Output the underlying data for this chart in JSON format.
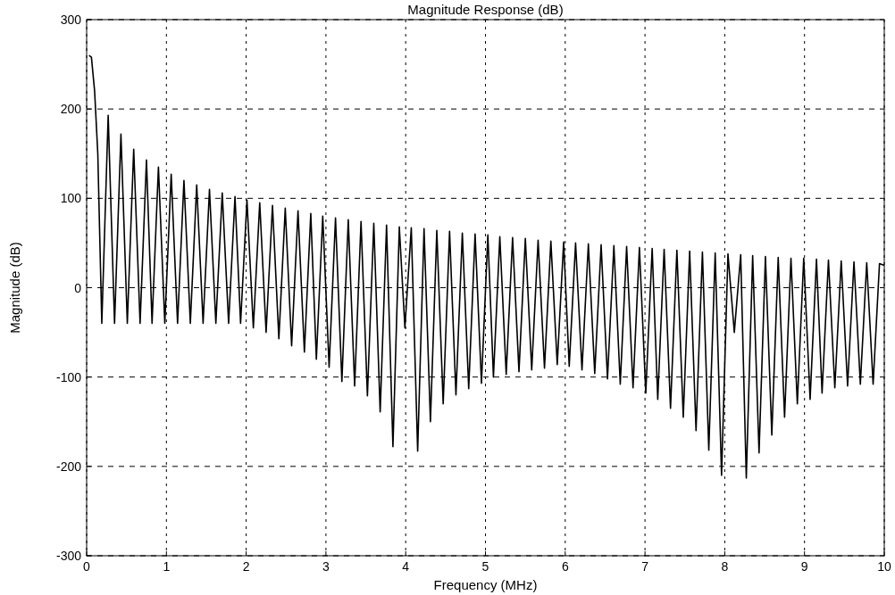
{
  "chart_data": {
    "type": "line",
    "title": "Magnitude Response (dB)",
    "xlabel": "Frequency (MHz)",
    "ylabel": "Magnitude (dB)",
    "xlim": [
      0,
      10
    ],
    "ylim": [
      -300,
      300
    ],
    "xticks": [
      0,
      1,
      2,
      3,
      4,
      5,
      6,
      7,
      8,
      9,
      10
    ],
    "yticks": [
      -300,
      -200,
      -100,
      0,
      100,
      200,
      300
    ],
    "grid": true,
    "line_style": "solid",
    "series": [
      {
        "color": "#000000",
        "x": [
          0.03,
          0.06,
          0.1,
          0.14,
          0.19,
          0.27,
          0.35,
          0.43,
          0.51,
          0.59,
          0.67,
          0.75,
          0.82,
          0.9,
          0.98,
          1.06,
          1.14,
          1.22,
          1.3,
          1.38,
          1.46,
          1.54,
          1.62,
          1.7,
          1.78,
          1.86,
          1.93,
          2.01,
          2.09,
          2.17,
          2.25,
          2.33,
          2.41,
          2.49,
          2.57,
          2.65,
          2.73,
          2.81,
          2.88,
          2.96,
          3.04,
          3.12,
          3.2,
          3.28,
          3.36,
          3.44,
          3.52,
          3.6,
          3.68,
          3.76,
          3.84,
          3.92,
          3.99,
          4.07,
          4.15,
          4.23,
          4.31,
          4.39,
          4.47,
          4.55,
          4.63,
          4.71,
          4.79,
          4.87,
          4.95,
          5.03,
          5.1,
          5.18,
          5.26,
          5.34,
          5.42,
          5.5,
          5.58,
          5.66,
          5.74,
          5.82,
          5.9,
          5.98,
          6.05,
          6.13,
          6.21,
          6.29,
          6.37,
          6.45,
          6.53,
          6.61,
          6.69,
          6.77,
          6.85,
          6.93,
          7.01,
          7.09,
          7.16,
          7.24,
          7.32,
          7.4,
          7.48,
          7.56,
          7.64,
          7.72,
          7.8,
          7.88,
          7.96,
          8.04,
          8.12,
          8.2,
          8.27,
          8.35,
          8.43,
          8.51,
          8.59,
          8.67,
          8.75,
          8.83,
          8.91,
          8.99,
          9.07,
          9.15,
          9.22,
          9.3,
          9.38,
          9.46,
          9.54,
          9.62,
          9.7,
          9.78,
          9.86,
          9.94,
          10.0
        ],
        "values": [
          260,
          258,
          220,
          150,
          -40,
          193,
          -40,
          172,
          -40,
          155,
          -40,
          143,
          -40,
          135,
          -40,
          127,
          -40,
          120,
          -40,
          115,
          -40,
          110,
          -40,
          106,
          -40,
          102,
          -40,
          98,
          -45,
          95,
          -50,
          92,
          -57,
          89,
          -65,
          86,
          -72,
          83,
          -80,
          80,
          -89,
          78,
          -105,
          76,
          -110,
          74,
          -121,
          72,
          -139,
          70,
          -178,
          68,
          -45,
          67,
          -183,
          66,
          -150,
          64,
          -130,
          63,
          -120,
          61,
          -113,
          60,
          -107,
          59,
          -100,
          57,
          -97,
          56,
          -94,
          55,
          -92,
          53,
          -90,
          52,
          -86,
          51,
          -88,
          50,
          -92,
          49,
          -96,
          48,
          -102,
          47,
          -108,
          46,
          -112,
          45,
          -118,
          44,
          -125,
          43,
          -135,
          42,
          -145,
          41,
          -160,
          40,
          -182,
          39,
          -210,
          38,
          -50,
          37,
          -213,
          36,
          -185,
          35,
          -165,
          34,
          -145,
          33,
          -130,
          33,
          -125,
          32,
          -118,
          31,
          -112,
          30,
          -110,
          29,
          -108,
          28,
          -108,
          27,
          25
        ]
      }
    ]
  }
}
